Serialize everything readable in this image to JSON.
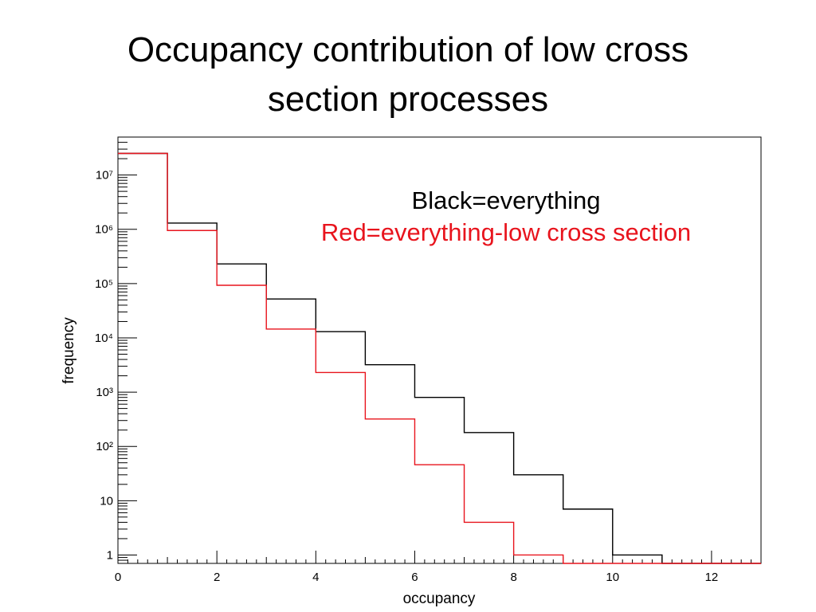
{
  "slide": {
    "title_line1": "Occupancy contribution of low cross",
    "title_line2": "section processes"
  },
  "chart_data": {
    "type": "histogram",
    "xlabel": "occupancy",
    "ylabel": "frequency",
    "xlim": [
      0,
      13
    ],
    "ylim": [
      0.7,
      50000000
    ],
    "y_scale": "log",
    "x_ticks": [
      0,
      2,
      4,
      6,
      8,
      10,
      12
    ],
    "y_ticks": [
      {
        "value": 1,
        "label": "1"
      },
      {
        "value": 10,
        "label": "10"
      },
      {
        "value": 100,
        "label": "10²"
      },
      {
        "value": 1000,
        "label": "10³"
      },
      {
        "value": 10000,
        "label": "10⁴"
      },
      {
        "value": 100000,
        "label": "10⁵"
      },
      {
        "value": 1000000,
        "label": "10⁶"
      },
      {
        "value": 10000000,
        "label": "10⁷"
      }
    ],
    "bin_edges": [
      0,
      1,
      2,
      3,
      4,
      5,
      6,
      7,
      8,
      9,
      10,
      11,
      12,
      13
    ],
    "annotations": [
      "Black=everything",
      "Red=everything-low cross section"
    ],
    "series": [
      {
        "color": "#000000",
        "values": [
          25000000,
          1300000,
          230000,
          52000,
          13000,
          3200,
          800,
          180,
          30,
          7,
          1,
          0,
          0
        ]
      },
      {
        "color": "#e8141d",
        "values": [
          25000000,
          950000,
          93000,
          14500,
          2300,
          320,
          46,
          4,
          1,
          0,
          0,
          0,
          0
        ]
      }
    ]
  }
}
